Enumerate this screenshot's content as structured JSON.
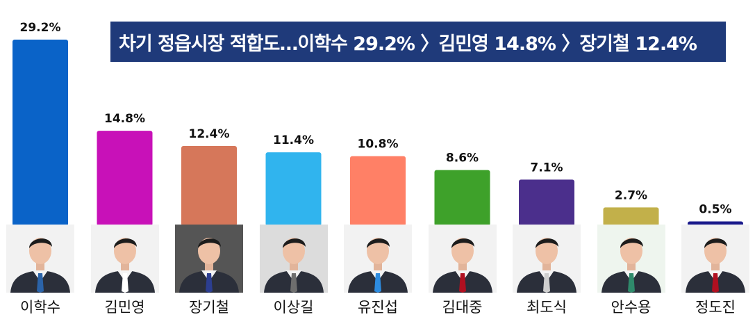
{
  "title": "차기 정읍시장 적합도…이학수 29.2% 〉김민영 14.8% 〉장기철 12.4%",
  "chart_data": {
    "type": "bar",
    "categories": [
      "이학수",
      "김민영",
      "장기철",
      "이상길",
      "유진섭",
      "김대중",
      "최도식",
      "안수용",
      "정도진"
    ],
    "values": [
      29.2,
      14.8,
      12.4,
      11.4,
      10.8,
      8.6,
      7.1,
      2.7,
      0.5
    ],
    "value_labels": [
      "29.2%",
      "14.8%",
      "12.4%",
      "11.4%",
      "10.8%",
      "8.6%",
      "7.1%",
      "2.7%",
      "0.5%"
    ],
    "colors": [
      "#0a63c8",
      "#c811b8",
      "#d6775a",
      "#30b4ee",
      "#ff8066",
      "#3ea12a",
      "#4b2f8c",
      "#c2b04a",
      "#1a1a8c"
    ],
    "ylim": [
      0,
      29.2
    ],
    "grid": false,
    "legend": "none"
  },
  "candidates": [
    {
      "bg": "#f2f2f2",
      "tie": "#2b63a8"
    },
    {
      "bg": "#f2f2f2",
      "tie": "#ffffff"
    },
    {
      "bg": "#555555",
      "tie": "#2c3e90"
    },
    {
      "bg": "#dcdcdc",
      "tie": "#6e6e6e"
    },
    {
      "bg": "#f2f2f2",
      "tie": "#2d8ce0"
    },
    {
      "bg": "#f2f2f2",
      "tie": "#b01020"
    },
    {
      "bg": "#f2f2f2",
      "tie": "#cfcfcf"
    },
    {
      "bg": "#eef5ee",
      "tie": "#2f8a6b"
    },
    {
      "bg": "#f2f2f2",
      "tie": "#b01020"
    }
  ]
}
